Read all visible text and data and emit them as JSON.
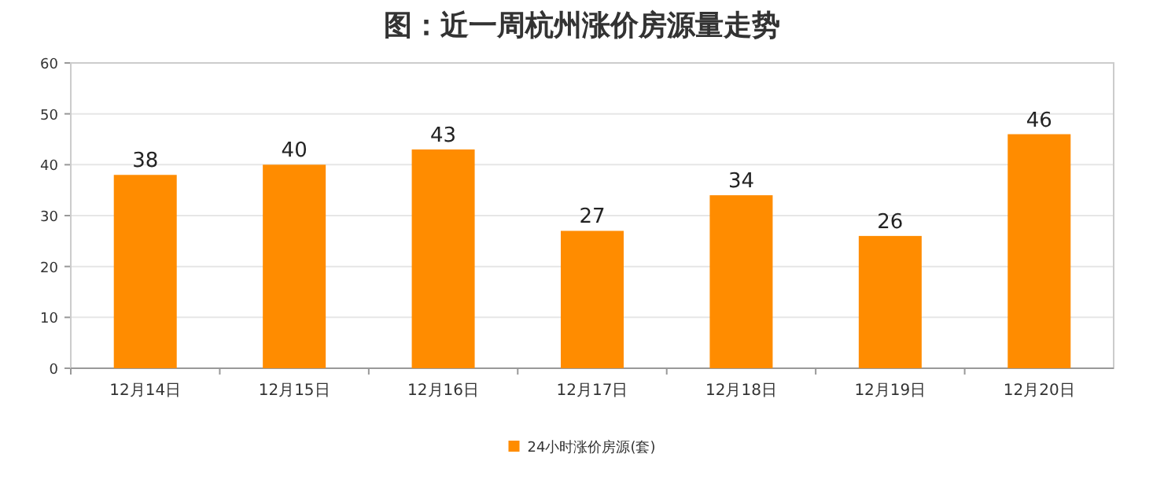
{
  "chart_data": {
    "type": "bar",
    "title": "图：近一周杭州涨价房源量走势",
    "categories": [
      "12月14日",
      "12月15日",
      "12月16日",
      "12月17日",
      "12月18日",
      "12月19日",
      "12月20日"
    ],
    "series": [
      {
        "name": "24小时涨价房源(套)",
        "color": "#ff8c00",
        "values": [
          38,
          40,
          43,
          27,
          34,
          26,
          46
        ]
      }
    ],
    "ylim": [
      0,
      60
    ],
    "yticks": [
      0,
      10,
      20,
      30,
      40,
      50,
      60
    ],
    "grid": "y",
    "legend": "bottom",
    "data_labels": true
  }
}
